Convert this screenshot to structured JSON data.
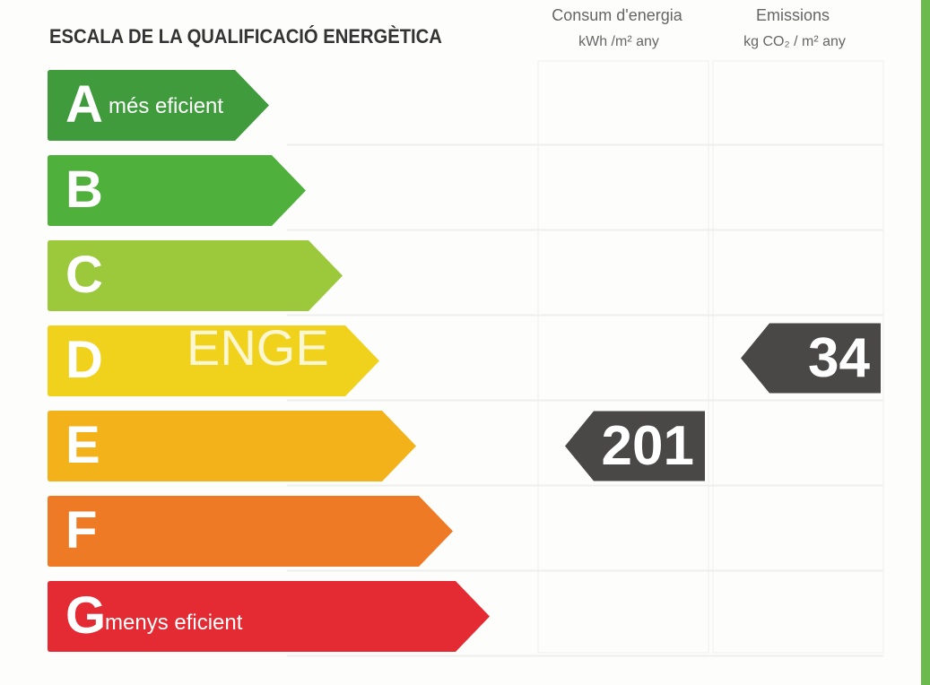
{
  "title": "ESCALA DE LA QUALIFICACIÓ ENERGÈTICA",
  "columns": [
    {
      "title": "Consum d'energia",
      "unit": "kWh /m² any"
    },
    {
      "title": "Emissions",
      "unit": "kg CO₂ / m² any"
    }
  ],
  "watermark": "ENGE",
  "grades": [
    {
      "letter": "A",
      "caption": "més eficient",
      "color": "#3f9b3c"
    },
    {
      "letter": "B",
      "color": "#4fb03c"
    },
    {
      "letter": "C",
      "color": "#9cc93b"
    },
    {
      "letter": "D",
      "color": "#f0d11c"
    },
    {
      "letter": "E",
      "color": "#f3b11a"
    },
    {
      "letter": "F",
      "color": "#ee7a25"
    },
    {
      "letter": "G",
      "caption": "menys eficient",
      "color": "#e42b33"
    }
  ],
  "ratings": [
    {
      "value": "201",
      "grade": "E"
    },
    {
      "value": "34",
      "grade": "D"
    }
  ]
}
